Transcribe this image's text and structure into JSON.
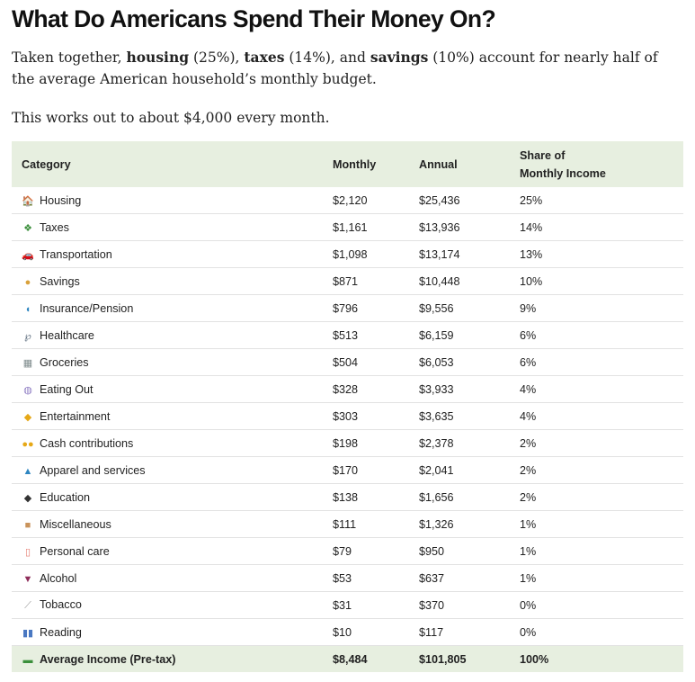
{
  "title": "What Do Americans Spend Their Money On?",
  "intro": {
    "p1": "Taken together, ",
    "housing": "housing",
    "p2": " (25%), ",
    "taxes": "taxes",
    "p3": " (14%), and ",
    "savings": "savings",
    "p4": " (10%) account for nearly half of the average American household’s monthly budget."
  },
  "monthly_text": "This works out to about $4,000 every month.",
  "table": {
    "headers": {
      "category": "Category",
      "monthly": "Monthly",
      "annual": "Annual",
      "share_line1": "Share of",
      "share_line2": "Monthly Income"
    },
    "rows": [
      {
        "icon": "house-icon",
        "glyph": "🏠",
        "color": "#c8553d",
        "category": "Housing",
        "monthly": "$2,120",
        "annual": "$25,436",
        "share": "25%"
      },
      {
        "icon": "money-with-wings-icon",
        "glyph": "❖",
        "color": "#3b8f3b",
        "category": "Taxes",
        "monthly": "$1,161",
        "annual": "$13,936",
        "share": "14%"
      },
      {
        "icon": "car-icon",
        "glyph": "🚗",
        "color": "#c0392b",
        "category": "Transportation",
        "monthly": "$1,098",
        "annual": "$13,174",
        "share": "13%"
      },
      {
        "icon": "money-bag-icon",
        "glyph": "●",
        "color": "#d9a13b",
        "category": "Savings",
        "monthly": "$871",
        "annual": "$10,448",
        "share": "10%"
      },
      {
        "icon": "shield-icon",
        "glyph": "◖",
        "color": "#2e86c1",
        "category": "Insurance/Pension",
        "monthly": "$796",
        "annual": "$9,556",
        "share": "9%"
      },
      {
        "icon": "stethoscope-icon",
        "glyph": "℘",
        "color": "#5d6d7e",
        "category": "Healthcare",
        "monthly": "$513",
        "annual": "$6,159",
        "share": "6%"
      },
      {
        "icon": "shopping-cart-icon",
        "glyph": "▦",
        "color": "#7f8c8d",
        "category": "Groceries",
        "monthly": "$504",
        "annual": "$6,053",
        "share": "6%"
      },
      {
        "icon": "plate-icon",
        "glyph": "◍",
        "color": "#8e7cc3",
        "category": "Eating Out",
        "monthly": "$328",
        "annual": "$3,933",
        "share": "4%"
      },
      {
        "icon": "theater-masks-icon",
        "glyph": "◆",
        "color": "#e6a817",
        "category": "Entertainment",
        "monthly": "$303",
        "annual": "$3,635",
        "share": "4%"
      },
      {
        "icon": "open-hands-icon",
        "glyph": "●●",
        "color": "#e6a817",
        "category": "Cash contributions",
        "monthly": "$198",
        "annual": "$2,378",
        "share": "2%"
      },
      {
        "icon": "dress-icon",
        "glyph": "▲",
        "color": "#2e86c1",
        "category": "Apparel and services",
        "monthly": "$170",
        "annual": "$2,041",
        "share": "2%"
      },
      {
        "icon": "graduation-cap-icon",
        "glyph": "◆",
        "color": "#333333",
        "category": "Education",
        "monthly": "$138",
        "annual": "$1,656",
        "share": "2%"
      },
      {
        "icon": "package-icon",
        "glyph": "■",
        "color": "#c9935b",
        "category": "Miscellaneous",
        "monthly": "$111",
        "annual": "$1,326",
        "share": "1%"
      },
      {
        "icon": "lotion-bottle-icon",
        "glyph": "▯",
        "color": "#e67e73",
        "category": "Personal care",
        "monthly": "$79",
        "annual": "$950",
        "share": "1%"
      },
      {
        "icon": "wine-glass-icon",
        "glyph": "▼",
        "color": "#8e2c5a",
        "category": "Alcohol",
        "monthly": "$53",
        "annual": "$637",
        "share": "1%"
      },
      {
        "icon": "cigarette-icon",
        "glyph": "⟋",
        "color": "#999999",
        "category": "Tobacco",
        "monthly": "$31",
        "annual": "$370",
        "share": "0%"
      },
      {
        "icon": "books-icon",
        "glyph": "▮▮",
        "color": "#4a78c2",
        "category": "Reading",
        "monthly": "$10",
        "annual": "$117",
        "share": "0%"
      }
    ],
    "total": {
      "icon": "banknote-icon",
      "glyph": "▬",
      "color": "#3b8f3b",
      "category": "Average Income (Pre-tax)",
      "monthly": "$8,484",
      "annual": "$101,805",
      "share": "100%"
    }
  }
}
